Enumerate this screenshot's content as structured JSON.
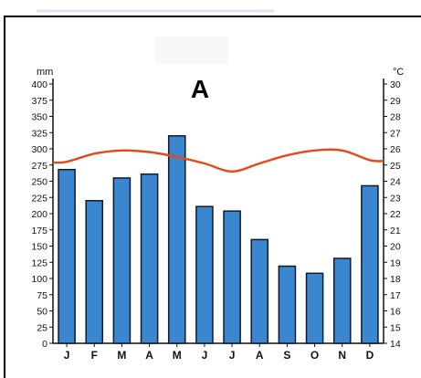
{
  "chart_data": {
    "type": "bar",
    "title": "A",
    "categories": [
      "J",
      "F",
      "M",
      "A",
      "M",
      "J",
      "J",
      "A",
      "S",
      "O",
      "N",
      "D"
    ],
    "series": [
      {
        "type": "bar",
        "axis": "left",
        "values": [
          268,
          220,
          255,
          261,
          320,
          211,
          204,
          160,
          119,
          108,
          131,
          243
        ]
      },
      {
        "type": "line",
        "axis": "right",
        "values": [
          25.2,
          25.7,
          25.9,
          25.8,
          25.5,
          25.1,
          24.6,
          25.1,
          25.6,
          25.9,
          25.9,
          25.3
        ]
      }
    ],
    "y_left": {
      "label": "mm",
      "lim": [
        0,
        400
      ],
      "ticks": [
        "0",
        "25",
        "50",
        "75",
        "100",
        "125",
        "150",
        "175",
        "200",
        "225",
        "250",
        "275",
        "300",
        "325",
        "350",
        "375",
        "400"
      ]
    },
    "y_right": {
      "label": "°C",
      "lim": [
        14,
        30
      ],
      "ticks": [
        "14",
        "15",
        "16",
        "17",
        "18",
        "19",
        "20",
        "21",
        "22",
        "23",
        "24",
        "25",
        "26",
        "27",
        "28",
        "29",
        "30"
      ]
    },
    "grid": false,
    "legend": "none",
    "colors": {
      "bar": "#3a86cf",
      "bar_edge": "#101a2a",
      "line": "#e8471a",
      "axis": "#111111",
      "frame": "#000000"
    }
  }
}
